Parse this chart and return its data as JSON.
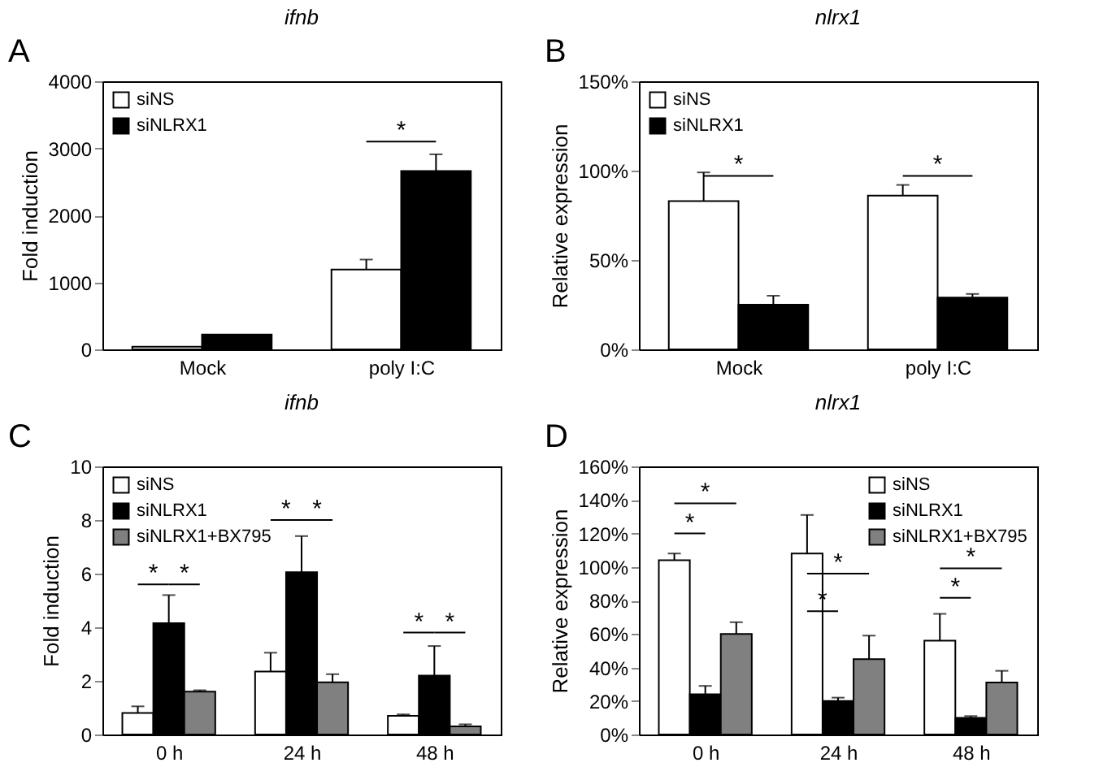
{
  "chart_data": [
    {
      "type": "bar",
      "title": "ifnb",
      "ylabel": "Fold induction",
      "categories": [
        "Mock",
        "poly I:C"
      ],
      "ylim": [
        0,
        4000
      ],
      "yticks": [
        0,
        1000,
        2000,
        3000,
        4000
      ],
      "grid": false,
      "legend": "top left",
      "series": [
        {
          "name": "siNS",
          "color": "#ffffff",
          "values": [
            40,
            1190
          ],
          "errors": [
            null,
            [
              1190,
              1340
            ]
          ]
        },
        {
          "name": "siNLRX1",
          "color": "#000000",
          "values": [
            220,
            2660
          ],
          "errors": [
            null,
            [
              2660,
              2910
            ]
          ]
        }
      ],
      "annotations": [
        "A",
        "*"
      ]
    },
    {
      "type": "bar",
      "title": "nlrx1",
      "ylabel": "Relative expression",
      "categories": [
        "Mock",
        "poly I:C"
      ],
      "ylim": [
        0,
        150
      ],
      "yticks": [
        {
          "value": 0,
          "label": "0%"
        },
        {
          "value": 50,
          "label": "50%"
        },
        {
          "value": 100,
          "label": "100%"
        },
        {
          "value": 150,
          "label": "150%"
        }
      ],
      "grid": false,
      "legend": "top left",
      "series": [
        {
          "name": "siNS",
          "color": "#ffffff",
          "values": [
            83,
            86
          ],
          "errors": [
            [
              83,
              99
            ],
            [
              86,
              92
            ]
          ]
        },
        {
          "name": "siNLRX1",
          "color": "#000000",
          "values": [
            25,
            29
          ],
          "errors": [
            [
              25,
              30
            ],
            [
              29,
              31
            ]
          ]
        }
      ],
      "annotations": [
        "B",
        "*",
        "*"
      ]
    },
    {
      "type": "bar",
      "title": "ifnb",
      "ylabel": "Fold induction",
      "categories": [
        "0 h",
        "24 h",
        "48 h"
      ],
      "ylim": [
        0,
        10
      ],
      "yticks": [
        0,
        2,
        4,
        6,
        8,
        10
      ],
      "grid": false,
      "legend": "top left",
      "series": [
        {
          "name": "siNS",
          "color": "#ffffff",
          "values": [
            0.8,
            2.35,
            0.7
          ],
          "errors": [
            [
              0.8,
              1.05
            ],
            [
              2.35,
              3.05
            ],
            [
              0.7,
              0.75
            ]
          ]
        },
        {
          "name": "siNLRX1",
          "color": "#000000",
          "values": [
            4.15,
            6.05,
            2.2
          ],
          "errors": [
            [
              4.15,
              5.2
            ],
            [
              6.05,
              7.4
            ],
            [
              2.2,
              3.3
            ]
          ]
        },
        {
          "name": "siNLRX1+BX795",
          "color": "#808080",
          "values": [
            1.6,
            1.95,
            0.3
          ],
          "errors": [
            [
              1.6,
              1.65
            ],
            [
              1.95,
              2.25
            ],
            [
              0.3,
              0.38
            ]
          ]
        }
      ],
      "annotations": [
        "C",
        "*",
        "*",
        "*",
        "*",
        "*",
        "*"
      ]
    },
    {
      "type": "bar",
      "title": "nlrx1",
      "ylabel": "Relative expression",
      "categories": [
        "0 h",
        "24 h",
        "48 h"
      ],
      "ylim": [
        0,
        160
      ],
      "yticks": [
        {
          "value": 0,
          "label": "0%"
        },
        {
          "value": 20,
          "label": "20%"
        },
        {
          "value": 40,
          "label": "40%"
        },
        {
          "value": 60,
          "label": "60%"
        },
        {
          "value": 80,
          "label": "80%"
        },
        {
          "value": 100,
          "label": "100%"
        },
        {
          "value": 120,
          "label": "120%"
        },
        {
          "value": 140,
          "label": "140%"
        },
        {
          "value": 160,
          "label": "160%"
        }
      ],
      "grid": false,
      "legend": "top right",
      "series": [
        {
          "name": "siNS",
          "color": "#ffffff",
          "values": [
            104,
            108,
            56
          ],
          "errors": [
            [
              104,
              108
            ],
            [
              108,
              131
            ],
            [
              56,
              72
            ]
          ]
        },
        {
          "name": "siNLRX1",
          "color": "#000000",
          "values": [
            24,
            20,
            10
          ],
          "errors": [
            [
              24,
              29
            ],
            [
              20,
              22
            ],
            [
              10,
              11
            ]
          ]
        },
        {
          "name": "siNLRX1+BX795",
          "color": "#808080",
          "values": [
            60,
            45,
            31
          ],
          "errors": [
            [
              60,
              67
            ],
            [
              45,
              59
            ],
            [
              31,
              38
            ]
          ]
        }
      ],
      "annotations": [
        "D",
        "*",
        "*",
        "*",
        "*",
        "*",
        "*"
      ]
    }
  ]
}
